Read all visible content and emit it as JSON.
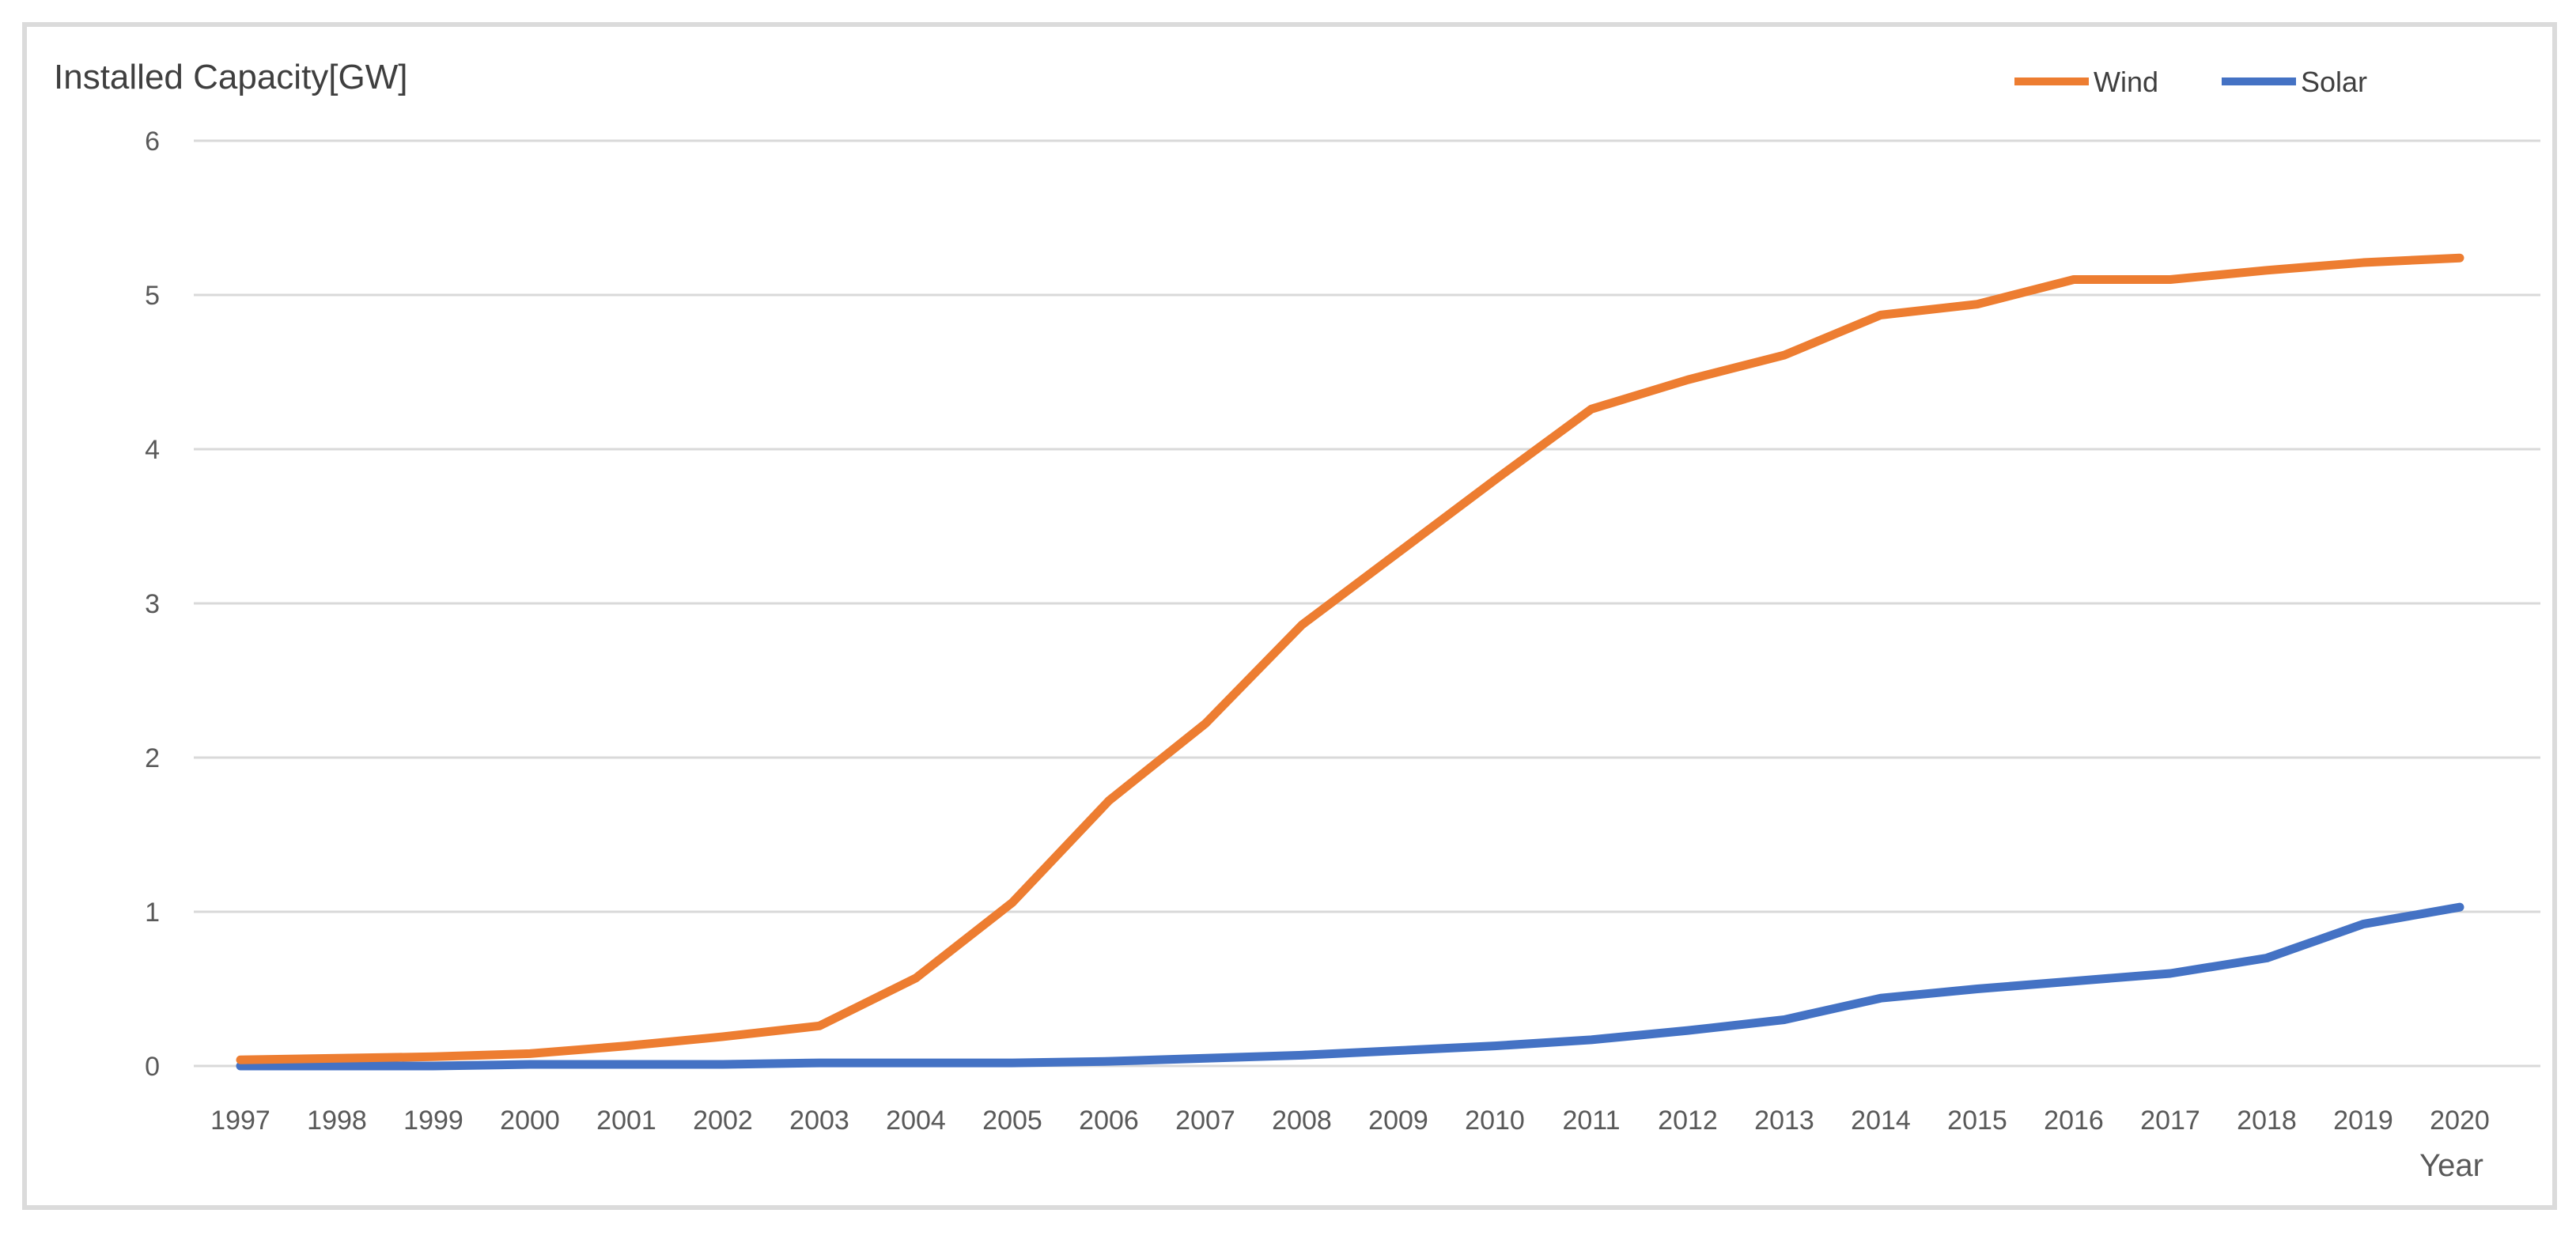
{
  "chart_data": {
    "type": "line",
    "title": "Installed Capacity[GW]",
    "xlabel": "Year",
    "ylabel": "",
    "x": [
      1997,
      1998,
      1999,
      2000,
      2001,
      2002,
      2003,
      2004,
      2005,
      2006,
      2007,
      2008,
      2009,
      2010,
      2011,
      2012,
      2013,
      2014,
      2015,
      2016,
      2017,
      2018,
      2019,
      2020
    ],
    "series": [
      {
        "name": "Wind",
        "color": "#ED7D31",
        "values": [
          0.04,
          0.05,
          0.06,
          0.08,
          0.13,
          0.19,
          0.26,
          0.57,
          1.06,
          1.72,
          2.22,
          2.86,
          3.33,
          3.8,
          4.26,
          4.45,
          4.61,
          4.87,
          4.94,
          5.1,
          5.1,
          5.16,
          5.21,
          5.24
        ]
      },
      {
        "name": "Solar",
        "color": "#4472C4",
        "values": [
          0.0,
          0.0,
          0.0,
          0.01,
          0.01,
          0.01,
          0.02,
          0.02,
          0.02,
          0.03,
          0.05,
          0.07,
          0.1,
          0.13,
          0.17,
          0.23,
          0.3,
          0.44,
          0.5,
          0.55,
          0.6,
          0.7,
          0.92,
          1.03
        ]
      }
    ],
    "ylim": [
      0,
      6
    ],
    "yticks": [
      0,
      1,
      2,
      3,
      4,
      5,
      6
    ],
    "grid": true,
    "legend_position": "top-right",
    "colors": {
      "background": "#FFFFFF",
      "chart_border": "#DBDBDB",
      "gridline": "#D9D9D9",
      "axis_text": "#595959",
      "title_text": "#3F3F3F"
    }
  }
}
